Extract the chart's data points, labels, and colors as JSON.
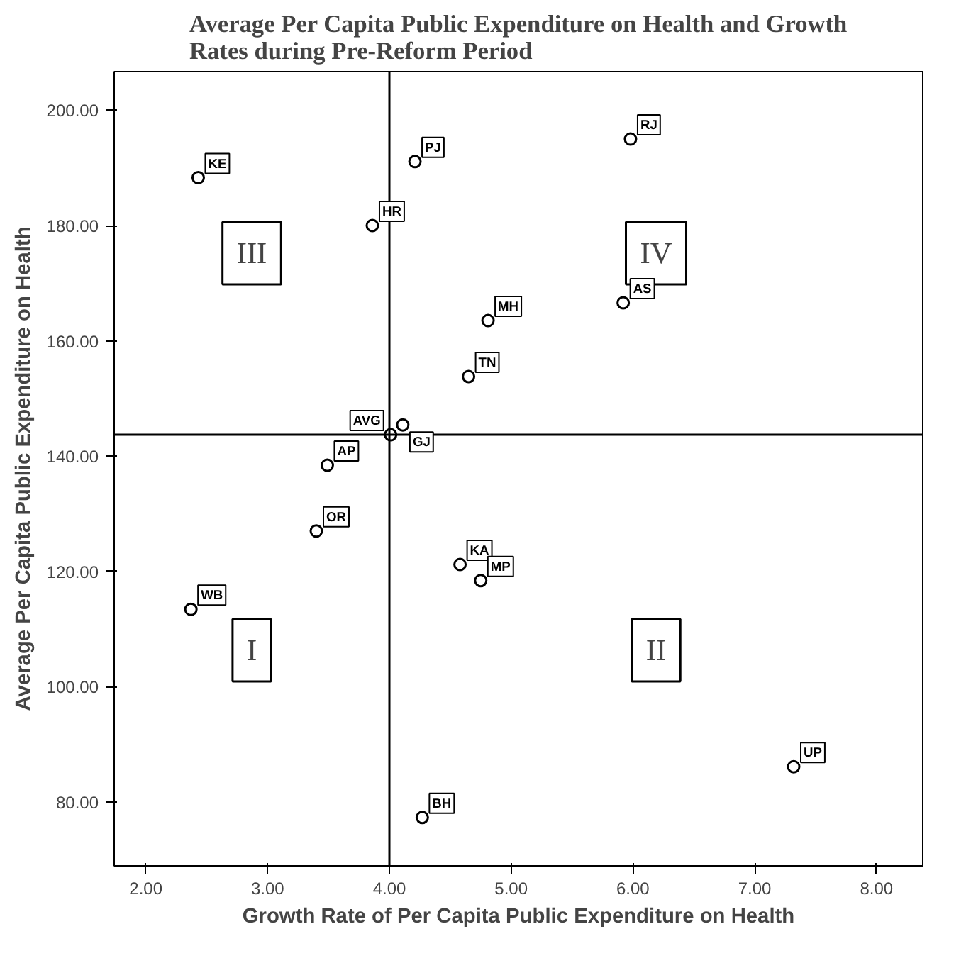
{
  "chart_data": {
    "type": "scatter",
    "title": "Average Per Capita Public Expenditure on Health and Growth\nRates during Pre-Reform Period",
    "xlabel": "Growth Rate of Per Capita Public Expenditure on Health",
    "ylabel": "Average Per Capita Public Expenditure on Health",
    "xlim": [
      1.74,
      8.38
    ],
    "ylim": [
      68.9,
      206.7
    ],
    "xticks": [
      {
        "value": 2,
        "label": "2.00"
      },
      {
        "value": 3,
        "label": "3.00"
      },
      {
        "value": 4,
        "label": "4.00"
      },
      {
        "value": 5,
        "label": "5.00"
      },
      {
        "value": 6,
        "label": "6.00"
      },
      {
        "value": 7,
        "label": "7.00"
      },
      {
        "value": 8,
        "label": "8.00"
      }
    ],
    "yticks": [
      {
        "value": 80,
        "label": "80.00"
      },
      {
        "value": 100,
        "label": "100.00"
      },
      {
        "value": 120,
        "label": "120.00"
      },
      {
        "value": 140,
        "label": "140.00"
      },
      {
        "value": 160,
        "label": "160.00"
      },
      {
        "value": 180,
        "label": "180.00"
      },
      {
        "value": 200,
        "label": "200.00"
      }
    ],
    "marker": "circle",
    "grid": false,
    "ref_lines": [
      {
        "axis": "x",
        "value": 4.0,
        "color": "#000000"
      },
      {
        "axis": "y",
        "value": 143.7,
        "color": "#000000"
      }
    ],
    "annotations": [
      "I",
      "II",
      "III",
      "IV"
    ],
    "color": "#000000",
    "x": [
      2.43,
      4.21,
      5.98,
      3.86,
      4.81,
      5.92,
      4.65,
      4.01,
      4.11,
      3.49,
      3.4,
      4.58,
      4.75,
      2.37,
      7.32,
      4.27
    ],
    "values": [
      188.3,
      191.1,
      195.0,
      180.0,
      163.5,
      166.6,
      153.8,
      143.7,
      145.4,
      138.4,
      127.0,
      121.2,
      118.4,
      113.4,
      86.1,
      77.3
    ],
    "value_labels": [
      "KE",
      "PJ",
      "RJ",
      "HR",
      "MH",
      "AS",
      "TN",
      "AVG",
      "GJ",
      "AP",
      "OR",
      "KA",
      "MP",
      "WB",
      "UP",
      "BH"
    ]
  }
}
